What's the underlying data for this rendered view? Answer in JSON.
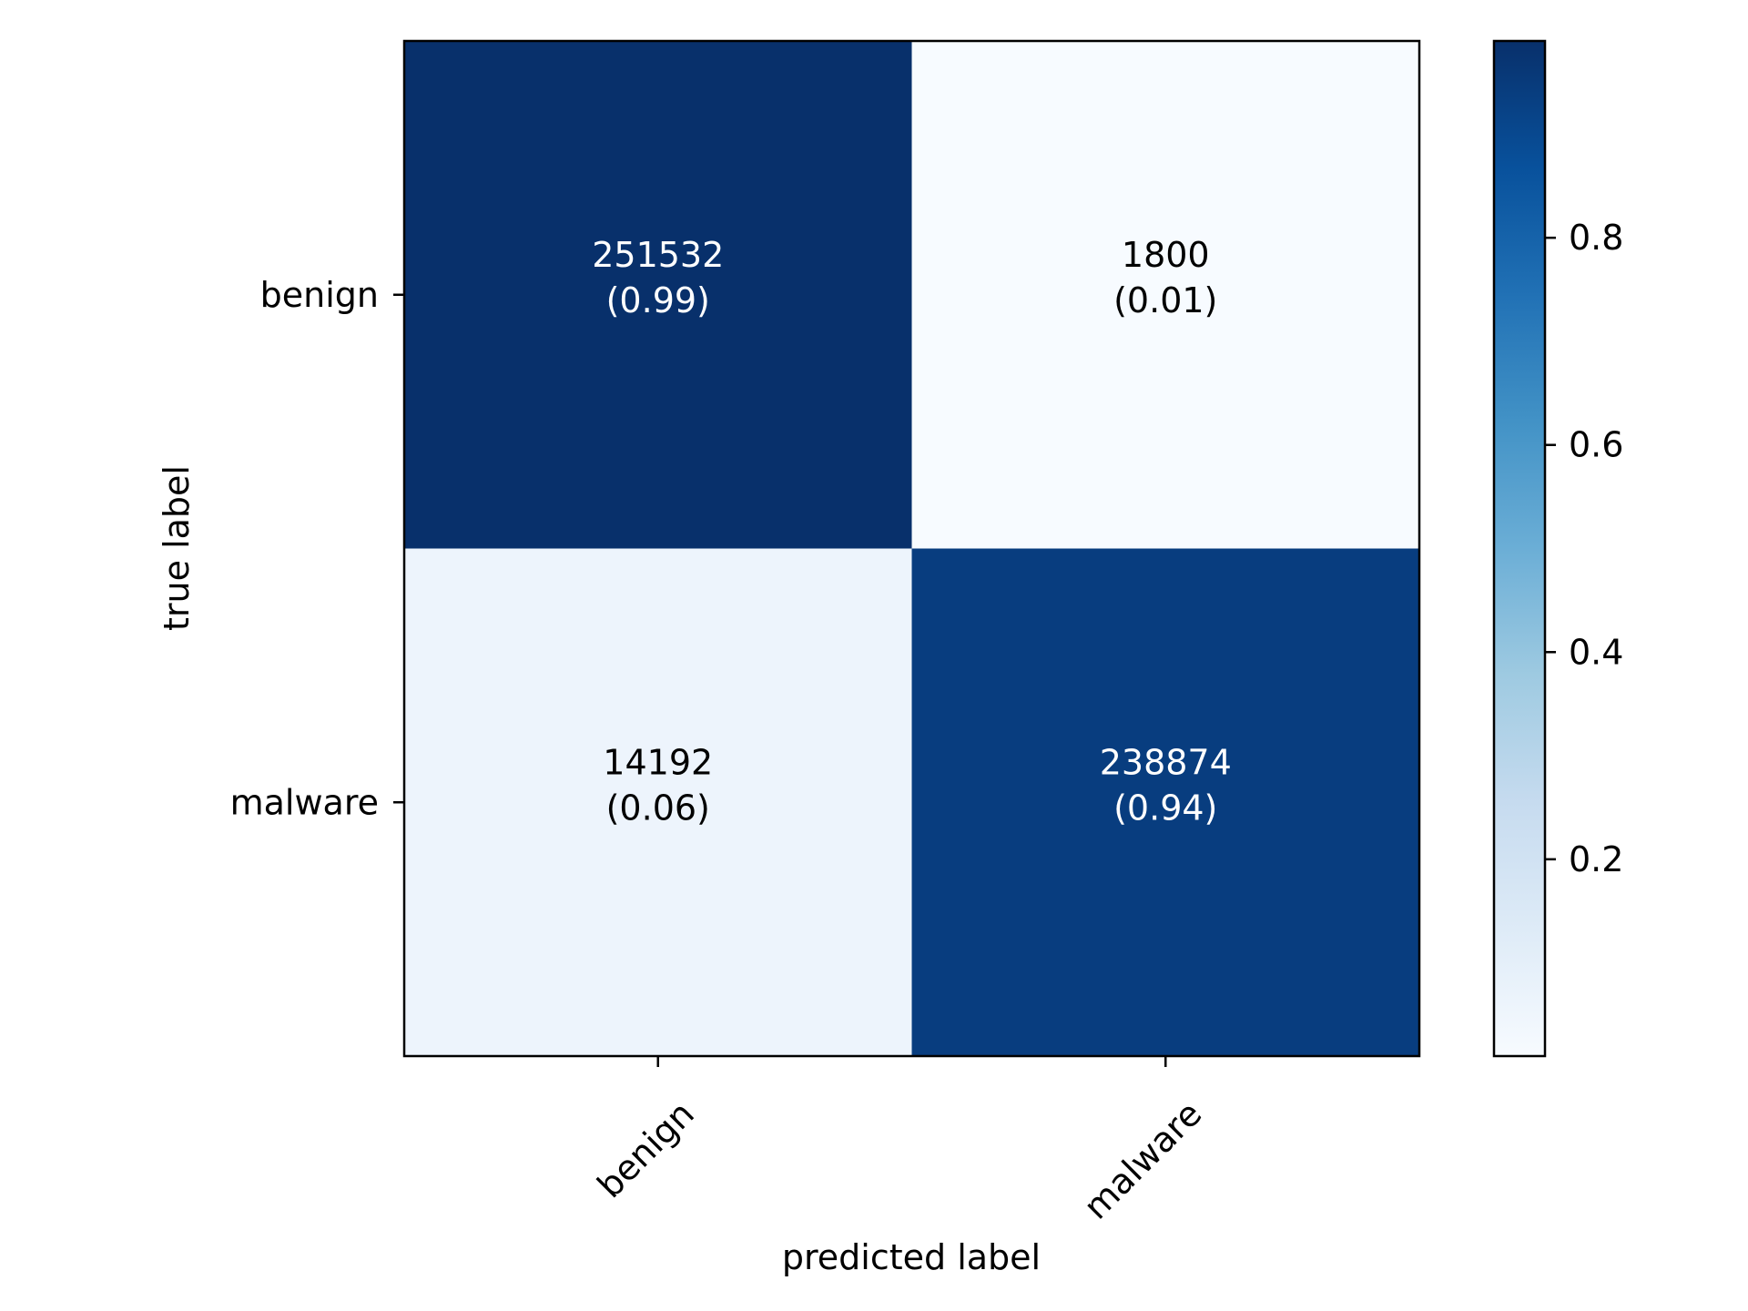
{
  "chart_data": {
    "type": "heatmap",
    "title": "",
    "xlabel": "predicted label",
    "ylabel": "true label",
    "x_categories": [
      "benign",
      "malware"
    ],
    "y_categories": [
      "benign",
      "malware"
    ],
    "cells": [
      [
        {
          "count": "251532",
          "fraction": "(0.99)",
          "value": 0.99
        },
        {
          "count": "1800",
          "fraction": "(0.01)",
          "value": 0.01
        }
      ],
      [
        {
          "count": "14192",
          "fraction": "(0.06)",
          "value": 0.06
        },
        {
          "count": "238874",
          "fraction": "(0.94)",
          "value": 0.94
        }
      ]
    ],
    "colorbar": {
      "range": [
        0.01,
        0.99
      ],
      "ticks": [
        "0.2",
        "0.4",
        "0.6",
        "0.8"
      ],
      "colormap": "Blues"
    },
    "colors": {
      "text_on_dark": "#ffffff",
      "text_on_light": "#000000"
    }
  }
}
